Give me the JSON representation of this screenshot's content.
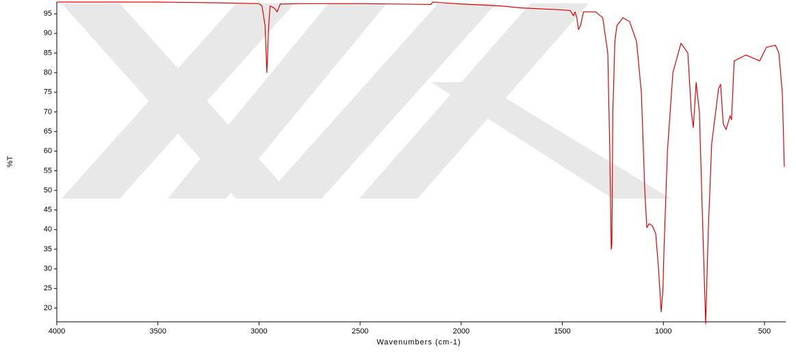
{
  "chart_data": {
    "type": "line",
    "x_label": "Wavenumbers (cm-1)",
    "y_label": "%T",
    "x": [
      4000,
      3500,
      3200,
      3000,
      2985,
      2970,
      2961,
      2952,
      2945,
      2925,
      2910,
      2895,
      2800,
      2500,
      2150,
      2140,
      2000,
      1800,
      1700,
      1500,
      1460,
      1445,
      1437,
      1428,
      1420,
      1410,
      1395,
      1335,
      1300,
      1275,
      1265,
      1258,
      1255,
      1250,
      1240,
      1230,
      1200,
      1167,
      1133,
      1109,
      1092,
      1082,
      1070,
      1055,
      1038,
      1024,
      1011,
      1002,
      997,
      980,
      953,
      913,
      879,
      862,
      852,
      838,
      822,
      805,
      791,
      778,
      761,
      727,
      717,
      704,
      690,
      670,
      663,
      650,
      592,
      524,
      490,
      446,
      429,
      412,
      402
    ],
    "series": [
      {
        "color": "#e00000",
        "values": [
          98,
          98,
          97.8,
          97.6,
          97,
          92,
          80,
          92,
          97,
          96.5,
          95.5,
          97.5,
          97.6,
          97.6,
          97.4,
          98,
          97.5,
          97,
          96.5,
          96,
          95.8,
          94.5,
          95.5,
          94,
          91,
          92,
          95.5,
          95.5,
          94,
          85,
          60,
          35,
          36,
          70,
          88,
          92,
          94,
          93,
          88,
          75,
          50,
          40.5,
          41.5,
          41,
          39,
          30,
          19,
          25,
          35,
          60,
          80,
          87.5,
          85,
          70,
          66,
          77.5,
          70,
          40,
          16,
          40,
          62,
          76,
          77,
          67,
          65.5,
          69,
          68,
          83,
          84.5,
          83,
          86.5,
          87,
          85,
          75,
          56
        ]
      }
    ],
    "xlim": [
      4000,
      395
    ],
    "ylim": [
      16.5,
      98
    ],
    "xticks": [
      4000,
      3500,
      3000,
      2500,
      2000,
      1500,
      1000,
      500
    ],
    "yticks": [
      20,
      25,
      30,
      35,
      40,
      45,
      50,
      55,
      60,
      65,
      70,
      75,
      80,
      85,
      90,
      95
    ]
  }
}
